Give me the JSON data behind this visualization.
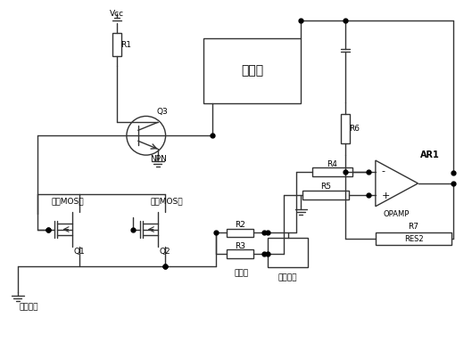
{
  "bg_color": "#ffffff",
  "line_color": "#333333",
  "labels": {
    "vcc": "Vcc",
    "r1": "R1",
    "q3": "Q3",
    "npn": "NPN",
    "mcu": "单片机",
    "r6": "R6",
    "ar1": "AR1",
    "r4": "R4",
    "r5": "R5",
    "opamp": "OPAMP",
    "r7": "R7",
    "res2": "RES2",
    "r2": "R2",
    "r3": "R3",
    "q1": "Q1",
    "q2": "Q2",
    "dis_mos": "放电MOS管",
    "chg_mos": "充电MOS管",
    "bat_neg": "电池负极",
    "kangdong": "康铜丝",
    "dis_port": "放电端口"
  }
}
